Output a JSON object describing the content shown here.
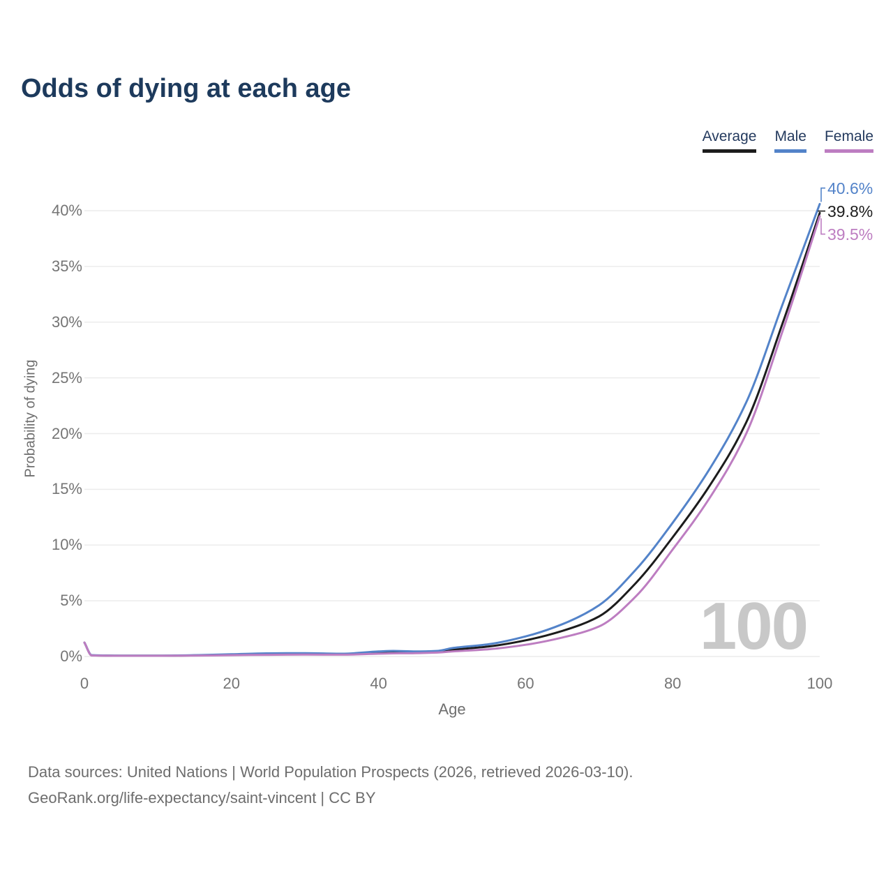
{
  "title": "Odds of dying at each age",
  "legend": {
    "items": [
      {
        "label": "Average",
        "color": "#1c1c1c"
      },
      {
        "label": "Male",
        "color": "#5383c9"
      },
      {
        "label": "Female",
        "color": "#bd7dc1"
      }
    ]
  },
  "chart_data": {
    "type": "line",
    "title": "Odds of dying at each age",
    "xlabel": "Age",
    "ylabel": "Probability of dying",
    "xlim": [
      0,
      100
    ],
    "ylim": [
      0,
      40
    ],
    "x_ticks": [
      0,
      20,
      40,
      60,
      80,
      100
    ],
    "y_ticks": [
      "0%",
      "5%",
      "10%",
      "15%",
      "20%",
      "25%",
      "30%",
      "35%",
      "40%"
    ],
    "grid": "horizontal",
    "legend_position": "top-right",
    "watermark": "100",
    "x": [
      0,
      1,
      5,
      10,
      15,
      20,
      25,
      30,
      35,
      40,
      42,
      45,
      48,
      50,
      55,
      60,
      65,
      70,
      75,
      80,
      85,
      90,
      95,
      100
    ],
    "series": [
      {
        "name": "Average",
        "color": "#1c1c1c",
        "end_label": "39.8%",
        "values": [
          1.25,
          0.1,
          0.07,
          0.07,
          0.1,
          0.17,
          0.24,
          0.26,
          0.22,
          0.4,
          0.45,
          0.4,
          0.45,
          0.6,
          0.9,
          1.45,
          2.3,
          3.6,
          6.6,
          10.7,
          15.3,
          21.0,
          30.0,
          39.8
        ]
      },
      {
        "name": "Male",
        "color": "#5383c9",
        "end_label": "40.6%",
        "values": [
          1.25,
          0.12,
          0.08,
          0.08,
          0.12,
          0.2,
          0.28,
          0.3,
          0.25,
          0.45,
          0.5,
          0.45,
          0.5,
          0.75,
          1.1,
          1.8,
          2.9,
          4.6,
          7.8,
          12.0,
          16.8,
          22.8,
          31.7,
          40.6
        ]
      },
      {
        "name": "Female",
        "color": "#bd7dc1",
        "end_label": "39.5%",
        "values": [
          1.25,
          0.09,
          0.06,
          0.06,
          0.08,
          0.12,
          0.15,
          0.17,
          0.16,
          0.25,
          0.28,
          0.3,
          0.35,
          0.45,
          0.65,
          1.05,
          1.7,
          2.7,
          5.4,
          9.6,
          14.2,
          20.0,
          29.3,
          39.5
        ]
      }
    ]
  },
  "footer": {
    "line1": "Data sources: United Nations | World Population Prospects (2026, retrieved 2026-03-10).",
    "line2": "GeoRank.org/life-expectancy/saint-vincent | CC BY"
  }
}
